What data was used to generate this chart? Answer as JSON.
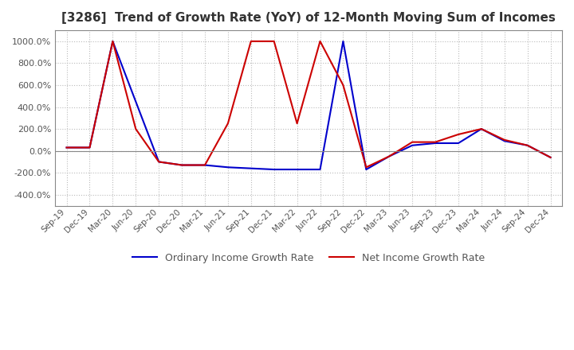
{
  "title": "[3286]  Trend of Growth Rate (YoY) of 12-Month Moving Sum of Incomes",
  "title_fontsize": 11,
  "ylim": [
    -500,
    1100
  ],
  "yticks": [
    -400,
    -200,
    0,
    200,
    400,
    600,
    800,
    1000
  ],
  "legend_labels": [
    "Ordinary Income Growth Rate",
    "Net Income Growth Rate"
  ],
  "line_colors": [
    "#0000cc",
    "#cc0000"
  ],
  "bg_color": "#ffffff",
  "grid_color": "#bbbbbb",
  "dates": [
    "Sep-19",
    "Dec-19",
    "Mar-20",
    "Jun-20",
    "Sep-20",
    "Dec-20",
    "Mar-21",
    "Jun-21",
    "Sep-21",
    "Dec-21",
    "Mar-22",
    "Jun-22",
    "Sep-22",
    "Dec-22",
    "Mar-23",
    "Jun-23",
    "Sep-23",
    "Dec-23",
    "Mar-24",
    "Jun-24",
    "Sep-24",
    "Dec-24"
  ],
  "ordinary_income": [
    30,
    30,
    1000,
    450,
    -100,
    -130,
    -130,
    -150,
    -160,
    -170,
    -170,
    -170,
    1000,
    -170,
    -50,
    50,
    70,
    70,
    200,
    90,
    50,
    -60
  ],
  "net_income": [
    30,
    30,
    1000,
    200,
    -100,
    -130,
    -130,
    250,
    1000,
    1000,
    250,
    1000,
    600,
    -150,
    -50,
    80,
    80,
    150,
    200,
    100,
    50,
    -60
  ]
}
